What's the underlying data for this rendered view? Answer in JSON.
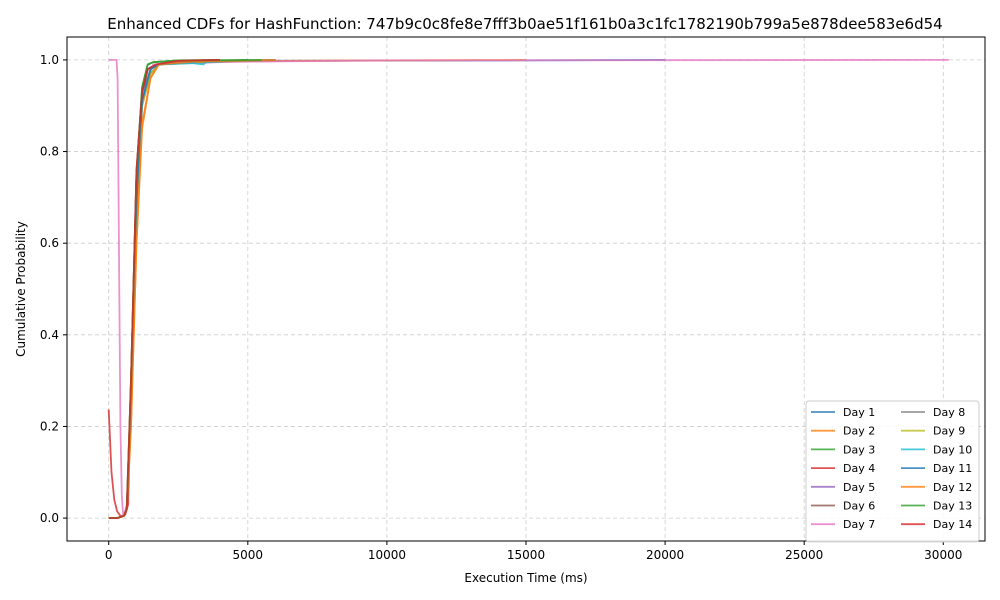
{
  "chart_data": {
    "type": "line",
    "title": "Enhanced CDFs for HashFunction: 747b9c0c8fe8e7fff3b0ae51f161b0a3c1fc1782190b799a5e878dee583e6d54",
    "xlabel": "Execution Time (ms)",
    "ylabel": "Cumulative Probability",
    "xlim": [
      -1500,
      31500
    ],
    "ylim": [
      -0.05,
      1.05
    ],
    "xticks": [
      0,
      5000,
      10000,
      15000,
      20000,
      25000,
      30000
    ],
    "yticks": [
      0.0,
      0.2,
      0.4,
      0.6,
      0.8,
      1.0
    ],
    "xtick_labels": [
      "0",
      "5000",
      "10000",
      "15000",
      "20000",
      "25000",
      "30000"
    ],
    "ytick_labels": [
      "0.0",
      "0.2",
      "0.4",
      "0.6",
      "0.8",
      "1.0"
    ],
    "grid": true,
    "legend_position": "lower-right",
    "legend_columns": 2,
    "series": [
      {
        "name": "Day 1",
        "color": "#1f77b4",
        "x": [
          0,
          300,
          550,
          650,
          800,
          1000,
          1200,
          1400,
          1700,
          2500,
          5000,
          15000,
          20000
        ],
        "y": [
          0,
          0,
          0.005,
          0.02,
          0.25,
          0.7,
          0.92,
          0.98,
          0.99,
          0.995,
          0.998,
          0.999,
          1.0
        ]
      },
      {
        "name": "Day 2",
        "color": "#ff7f0e",
        "x": [
          0,
          300,
          550,
          650,
          800,
          1000,
          1200,
          1500,
          1800,
          3000,
          6500,
          15000
        ],
        "y": [
          0,
          0,
          0.005,
          0.02,
          0.2,
          0.6,
          0.85,
          0.96,
          0.99,
          0.995,
          0.998,
          1.0
        ]
      },
      {
        "name": "Day 3",
        "color": "#2ca02c",
        "x": [
          0,
          300,
          550,
          650,
          800,
          1000,
          1200,
          1400,
          1600,
          2500,
          4000
        ],
        "y": [
          0,
          0,
          0.005,
          0.02,
          0.3,
          0.75,
          0.94,
          0.99,
          0.995,
          0.999,
          1.0
        ]
      },
      {
        "name": "Day 4",
        "color": "#d62728",
        "x": [
          0,
          100,
          200,
          300,
          400,
          500,
          600,
          700,
          800,
          1000,
          1200,
          1400,
          1700,
          2500,
          4000
        ],
        "y": [
          0.237,
          0.1,
          0.04,
          0.015,
          0.006,
          0.003,
          0.008,
          0.03,
          0.3,
          0.76,
          0.93,
          0.98,
          0.99,
          0.998,
          1.0
        ]
      },
      {
        "name": "Day 5",
        "color": "#9467bd",
        "x": [
          0,
          300,
          550,
          650,
          800,
          1000,
          1200,
          1500,
          1800,
          3000,
          6000
        ],
        "y": [
          0,
          0,
          0.005,
          0.02,
          0.25,
          0.68,
          0.9,
          0.97,
          0.99,
          0.993,
          1.0
        ]
      },
      {
        "name": "Day 6",
        "color": "#8c564b",
        "x": [
          0,
          300,
          550,
          650,
          800,
          1000,
          1200,
          1500,
          1800,
          3000,
          5000
        ],
        "y": [
          0,
          0,
          0.005,
          0.02,
          0.26,
          0.7,
          0.92,
          0.98,
          0.99,
          0.996,
          1.0
        ]
      },
      {
        "name": "Day 7",
        "color": "#e377c2",
        "x": [
          0,
          280,
          320,
          380,
          420,
          470,
          520,
          560,
          650,
          800,
          1000,
          1200,
          1600,
          2500,
          10000,
          30200
        ],
        "y": [
          1.0,
          1.0,
          0.96,
          0.5,
          0.2,
          0.05,
          0.005,
          0.008,
          0.03,
          0.3,
          0.72,
          0.92,
          0.99,
          0.995,
          0.999,
          1.0
        ]
      },
      {
        "name": "Day 8",
        "color": "#7f7f7f",
        "x": [
          0,
          300,
          550,
          650,
          800,
          1000,
          1200,
          1500,
          1800,
          3000,
          6000
        ],
        "y": [
          0,
          0,
          0.005,
          0.02,
          0.25,
          0.68,
          0.91,
          0.97,
          0.99,
          0.995,
          1.0
        ]
      },
      {
        "name": "Day 9",
        "color": "#bcbd22",
        "x": [
          0,
          300,
          550,
          650,
          800,
          1000,
          1200,
          1500,
          1800,
          3000,
          6000
        ],
        "y": [
          0,
          0,
          0.005,
          0.02,
          0.24,
          0.67,
          0.9,
          0.97,
          0.99,
          0.995,
          1.0
        ]
      },
      {
        "name": "Day 10",
        "color": "#17becf",
        "x": [
          0,
          300,
          550,
          650,
          800,
          1000,
          1200,
          1500,
          1800,
          3000,
          3400,
          3500,
          5000
        ],
        "y": [
          0,
          0,
          0.005,
          0.02,
          0.25,
          0.7,
          0.91,
          0.98,
          0.99,
          0.993,
          0.99,
          0.995,
          1.0
        ]
      },
      {
        "name": "Day 11",
        "color": "#1f77b4",
        "x": [
          0,
          300,
          550,
          650,
          800,
          1000,
          1200,
          1500,
          1800,
          3000,
          6000
        ],
        "y": [
          0,
          0,
          0.005,
          0.02,
          0.25,
          0.69,
          0.91,
          0.98,
          0.99,
          0.996,
          1.0
        ]
      },
      {
        "name": "Day 12",
        "color": "#ff7f0e",
        "x": [
          0,
          300,
          550,
          650,
          800,
          1000,
          1200,
          1500,
          1800,
          3000,
          6000
        ],
        "y": [
          0,
          0,
          0.005,
          0.02,
          0.2,
          0.6,
          0.86,
          0.96,
          0.99,
          0.996,
          1.0
        ]
      },
      {
        "name": "Day 13",
        "color": "#2ca02c",
        "x": [
          0,
          300,
          550,
          650,
          800,
          1000,
          1200,
          1400,
          1600,
          2500,
          5500
        ],
        "y": [
          0,
          0,
          0.005,
          0.02,
          0.3,
          0.75,
          0.94,
          0.99,
          0.995,
          0.999,
          1.0
        ]
      },
      {
        "name": "Day 14",
        "color": "#d62728",
        "x": [
          0,
          300,
          550,
          650,
          800,
          1000,
          1200,
          1400,
          1700,
          2500,
          4000
        ],
        "y": [
          0,
          0,
          0.005,
          0.02,
          0.3,
          0.76,
          0.93,
          0.98,
          0.99,
          0.998,
          1.0
        ]
      }
    ]
  }
}
